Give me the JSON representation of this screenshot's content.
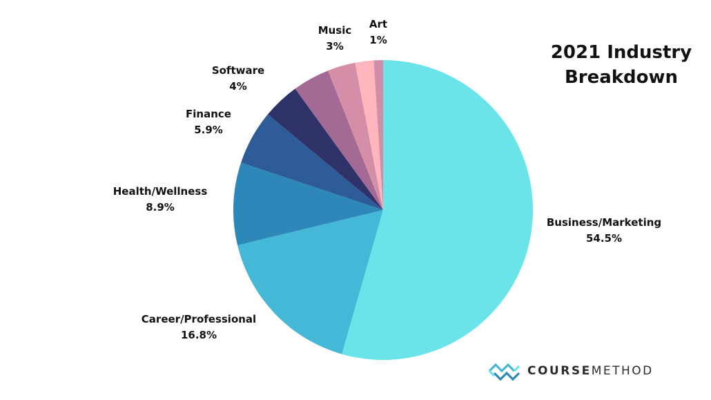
{
  "chart_data": {
    "type": "pie",
    "title_lines": [
      "2021 Industry",
      "Breakdown"
    ],
    "slices": [
      {
        "label": "Business/Marketing",
        "value_text": "54.5%",
        "value": 54.5,
        "color": "#6ae4e9"
      },
      {
        "label": "Career/Professional",
        "value_text": "16.8%",
        "value": 16.8,
        "color": "#44b8d6"
      },
      {
        "label": "Health/Wellness",
        "value_text": "8.9%",
        "value": 8.9,
        "color": "#2d88b9"
      },
      {
        "label": "Finance",
        "value_text": "5.9%",
        "value": 5.9,
        "color": "#2e5c98"
      },
      {
        "label": "Software",
        "value_text": "4%",
        "value": 4,
        "color": "#2f3269"
      },
      {
        "label": "",
        "value_text": "",
        "value": 4,
        "color": "#a36a95"
      },
      {
        "label": "Music",
        "value_text": "3%",
        "value": 3,
        "color": "#d48ea8"
      },
      {
        "label": "",
        "value_text": "",
        "value": 2,
        "color": "#ffb6bd"
      },
      {
        "label": "Art",
        "value_text": "1%",
        "value": 1,
        "color": "#cf8fa7"
      }
    ]
  },
  "logo": {
    "text_bold": "COURSE",
    "text_light": "METHOD",
    "icon": "coursemethod-logo-icon"
  }
}
